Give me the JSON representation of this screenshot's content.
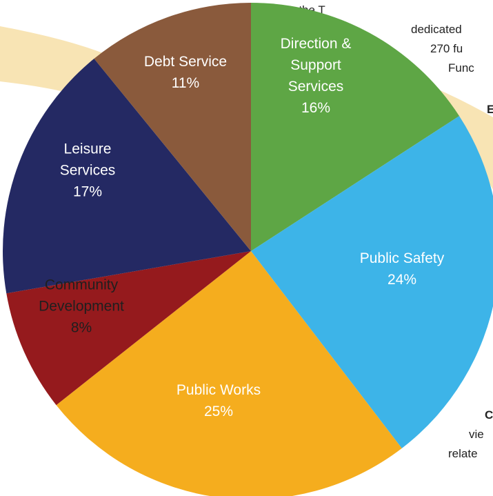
{
  "background_text": {
    "lines": [
      "How does the T",
      "dedicated",
      "270 fu",
      "Func",
      "E",
      "C",
      "vie",
      "relate"
    ]
  },
  "colors": {
    "ribbon": "#f8e4b4",
    "label_light": "#ffffff",
    "label_dark": "#1f1f1f"
  },
  "chart_data": {
    "type": "pie",
    "title": "",
    "start_angle_deg": 0,
    "direction": "clockwise",
    "slices": [
      {
        "label_lines": [
          "Direction &",
          "Support",
          "Services"
        ],
        "value": 16,
        "value_label": "16%",
        "color": "#5ea645",
        "label_color": "light"
      },
      {
        "label_lines": [
          "Public Safety"
        ],
        "value": 24,
        "value_label": "24%",
        "color": "#3db4e8",
        "label_color": "light"
      },
      {
        "label_lines": [
          "Public Works"
        ],
        "value": 25,
        "value_label": "25%",
        "color": "#f5ad1e",
        "label_color": "light"
      },
      {
        "label_lines": [
          "Community",
          "Development"
        ],
        "value": 8,
        "value_label": "8%",
        "color": "#951a1d",
        "label_color": "dark"
      },
      {
        "label_lines": [
          "Leisure",
          "Services"
        ],
        "value": 17,
        "value_label": "17%",
        "color": "#242963",
        "label_color": "light"
      },
      {
        "label_lines": [
          "Debt Service"
        ],
        "value": 11,
        "value_label": "11%",
        "color": "#8a5a3c",
        "label_color": "light"
      }
    ]
  }
}
